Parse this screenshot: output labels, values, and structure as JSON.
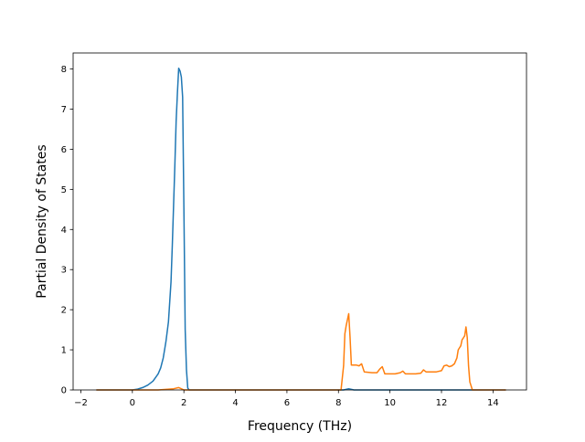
{
  "chart_data": {
    "type": "line",
    "title": "",
    "xlabel": "Frequency (THz)",
    "ylabel": "Partial Density of States",
    "xlim": [
      -2.3,
      15.3
    ],
    "ylim": [
      0,
      8.4
    ],
    "xticks": [
      -2,
      0,
      2,
      4,
      6,
      8,
      10,
      12,
      14
    ],
    "yticks": [
      0,
      1,
      2,
      3,
      4,
      5,
      6,
      7,
      8
    ],
    "grid": false,
    "legend": "none",
    "series": [
      {
        "color": "#1f77b4",
        "x": [
          -1.4,
          0.0,
          0.2,
          0.4,
          0.6,
          0.8,
          1.0,
          1.1,
          1.2,
          1.3,
          1.4,
          1.5,
          1.55,
          1.6,
          1.65,
          1.7,
          1.75,
          1.8,
          1.85,
          1.9,
          1.95,
          2.0,
          2.05,
          2.1,
          2.15,
          2.2,
          2.3,
          8.2,
          8.4,
          8.6,
          14.5
        ],
        "y": [
          0.0,
          0.0,
          0.02,
          0.06,
          0.12,
          0.22,
          0.4,
          0.55,
          0.8,
          1.2,
          1.7,
          2.7,
          3.6,
          4.6,
          5.6,
          6.7,
          7.4,
          8.02,
          7.95,
          7.8,
          7.3,
          4.5,
          1.5,
          0.5,
          0.05,
          0.0,
          0.0,
          0.0,
          0.03,
          0.0,
          0.0
        ]
      },
      {
        "color": "#ff7f0e",
        "x": [
          -1.4,
          0.0,
          1.0,
          1.6,
          1.8,
          1.9,
          2.0,
          2.2,
          8.1,
          8.2,
          8.25,
          8.3,
          8.4,
          8.45,
          8.5,
          8.7,
          8.8,
          8.9,
          9.0,
          9.3,
          9.5,
          9.6,
          9.7,
          9.8,
          10.0,
          10.2,
          10.4,
          10.5,
          10.6,
          10.8,
          11.0,
          11.2,
          11.3,
          11.4,
          11.6,
          11.8,
          12.0,
          12.1,
          12.2,
          12.3,
          12.4,
          12.5,
          12.6,
          12.65,
          12.7,
          12.75,
          12.8,
          12.85,
          12.9,
          12.95,
          13.0,
          13.05,
          13.1,
          13.2,
          13.3,
          14.5
        ],
        "y": [
          0.0,
          0.0,
          0.0,
          0.03,
          0.06,
          0.03,
          0.0,
          0.0,
          0.0,
          0.6,
          1.4,
          1.6,
          1.9,
          1.3,
          0.62,
          0.62,
          0.6,
          0.65,
          0.45,
          0.43,
          0.43,
          0.52,
          0.58,
          0.4,
          0.4,
          0.4,
          0.43,
          0.47,
          0.4,
          0.4,
          0.4,
          0.42,
          0.5,
          0.45,
          0.45,
          0.45,
          0.48,
          0.6,
          0.62,
          0.58,
          0.6,
          0.65,
          0.8,
          1.0,
          1.05,
          1.1,
          1.25,
          1.3,
          1.35,
          1.57,
          1.3,
          0.6,
          0.2,
          0.0,
          0.0,
          0.0
        ]
      }
    ]
  }
}
